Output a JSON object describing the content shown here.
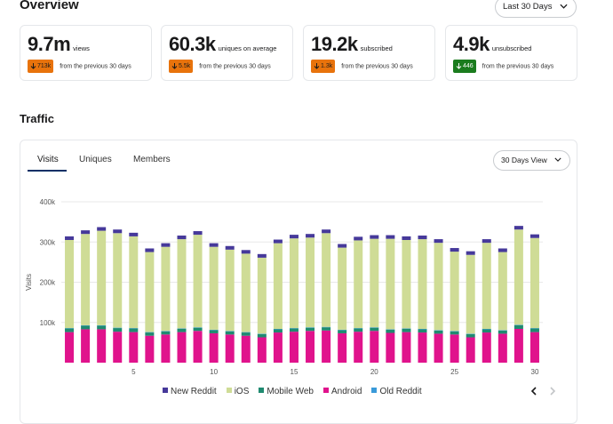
{
  "overview": {
    "title": "Overview",
    "range_select": "Last 30 Days",
    "stats": [
      {
        "value": "9.7m",
        "label": "views",
        "delta": "713k",
        "direction": "up",
        "comparison": "from the previous 30 days"
      },
      {
        "value": "60.3k",
        "label": "uniques on average",
        "delta": "5.5k",
        "direction": "up",
        "comparison": "from the previous 30 days"
      },
      {
        "value": "19.2k",
        "label": "subscribed",
        "delta": "1.3k",
        "direction": "up",
        "comparison": "from the previous 30 days"
      },
      {
        "value": "4.9k",
        "label": "unsubscribed",
        "delta": "446",
        "direction": "down",
        "comparison": "from the previous 30 days"
      }
    ]
  },
  "traffic": {
    "title": "Traffic",
    "tabs": [
      "Visits",
      "Uniques",
      "Members"
    ],
    "active_tab": "Visits",
    "view_select": "30 Days View"
  },
  "chart_data": {
    "type": "bar",
    "stacked": true,
    "ylabel": "Visits",
    "ylim": [
      0,
      400000
    ],
    "yticks": [
      "400k",
      "300k",
      "200k",
      "100k"
    ],
    "xticks": [
      "5",
      "10",
      "15",
      "20",
      "25",
      "30"
    ],
    "grid": true,
    "legend_position": "bottom",
    "categories": [
      1,
      2,
      3,
      4,
      5,
      6,
      7,
      8,
      9,
      10,
      11,
      12,
      13,
      14,
      15,
      16,
      17,
      18,
      19,
      20,
      21,
      22,
      23,
      24,
      25,
      26,
      27,
      28,
      29,
      30
    ],
    "series": [
      {
        "name": "Android",
        "color": "#e0138c",
        "values": [
          76000,
          83000,
          83000,
          77000,
          76000,
          67000,
          70000,
          76000,
          79000,
          73000,
          70000,
          67000,
          63000,
          75000,
          77000,
          79000,
          80000,
          73000,
          77000,
          79000,
          74000,
          76000,
          75000,
          72000,
          70000,
          63000,
          75000,
          72000,
          84000,
          76000
        ]
      },
      {
        "name": "Mobile Web",
        "color": "#1f8a70",
        "values": [
          9000,
          9000,
          9000,
          9000,
          9000,
          8000,
          8000,
          8000,
          8000,
          8000,
          8000,
          8000,
          8000,
          8000,
          8000,
          8000,
          8000,
          8000,
          8000,
          8000,
          8000,
          8000,
          8000,
          8000,
          8000,
          8000,
          8000,
          8000,
          9000,
          9000
        ]
      },
      {
        "name": "Old Reddit",
        "color": "#3a9ad9",
        "values": [
          1000,
          1000,
          1000,
          1000,
          1000,
          1000,
          1000,
          1000,
          1000,
          1000,
          1000,
          1000,
          1000,
          1000,
          1000,
          1000,
          1000,
          1000,
          1000,
          1000,
          1000,
          1000,
          1000,
          1000,
          1000,
          1000,
          1000,
          1000,
          1000,
          1000
        ]
      },
      {
        "name": "iOS",
        "color": "#cfdc96",
        "values": [
          219000,
          227000,
          235000,
          235000,
          228000,
          199000,
          209000,
          222000,
          230000,
          206000,
          202000,
          195000,
          189000,
          213000,
          223000,
          223000,
          233000,
          204000,
          218000,
          220000,
          225000,
          220000,
          223000,
          217000,
          197000,
          196000,
          214000,
          194000,
          237000,
          224000
        ]
      },
      {
        "name": "New Reddit",
        "color": "#46399a",
        "values": [
          9000,
          9000,
          9000,
          9000,
          9000,
          9000,
          9000,
          9000,
          9000,
          9000,
          9000,
          9000,
          9000,
          9000,
          9000,
          9000,
          9000,
          9000,
          9000,
          9000,
          9000,
          9000,
          9000,
          9000,
          9000,
          9000,
          9000,
          9000,
          9000,
          9000
        ]
      }
    ],
    "legend_order": [
      "New Reddit",
      "iOS",
      "Mobile Web",
      "Android",
      "Old Reddit"
    ]
  },
  "icons": {
    "pager_prev": "chevron-left-icon",
    "pager_next": "chevron-right-icon",
    "select_chevron": "chevron-down-icon",
    "delta_up": "arrow-up-icon",
    "delta_down": "arrow-down-icon"
  },
  "colors": {
    "badge_up": "#e8730c",
    "badge_down": "#1b7c1e",
    "tab_underline": "#0a3066"
  }
}
